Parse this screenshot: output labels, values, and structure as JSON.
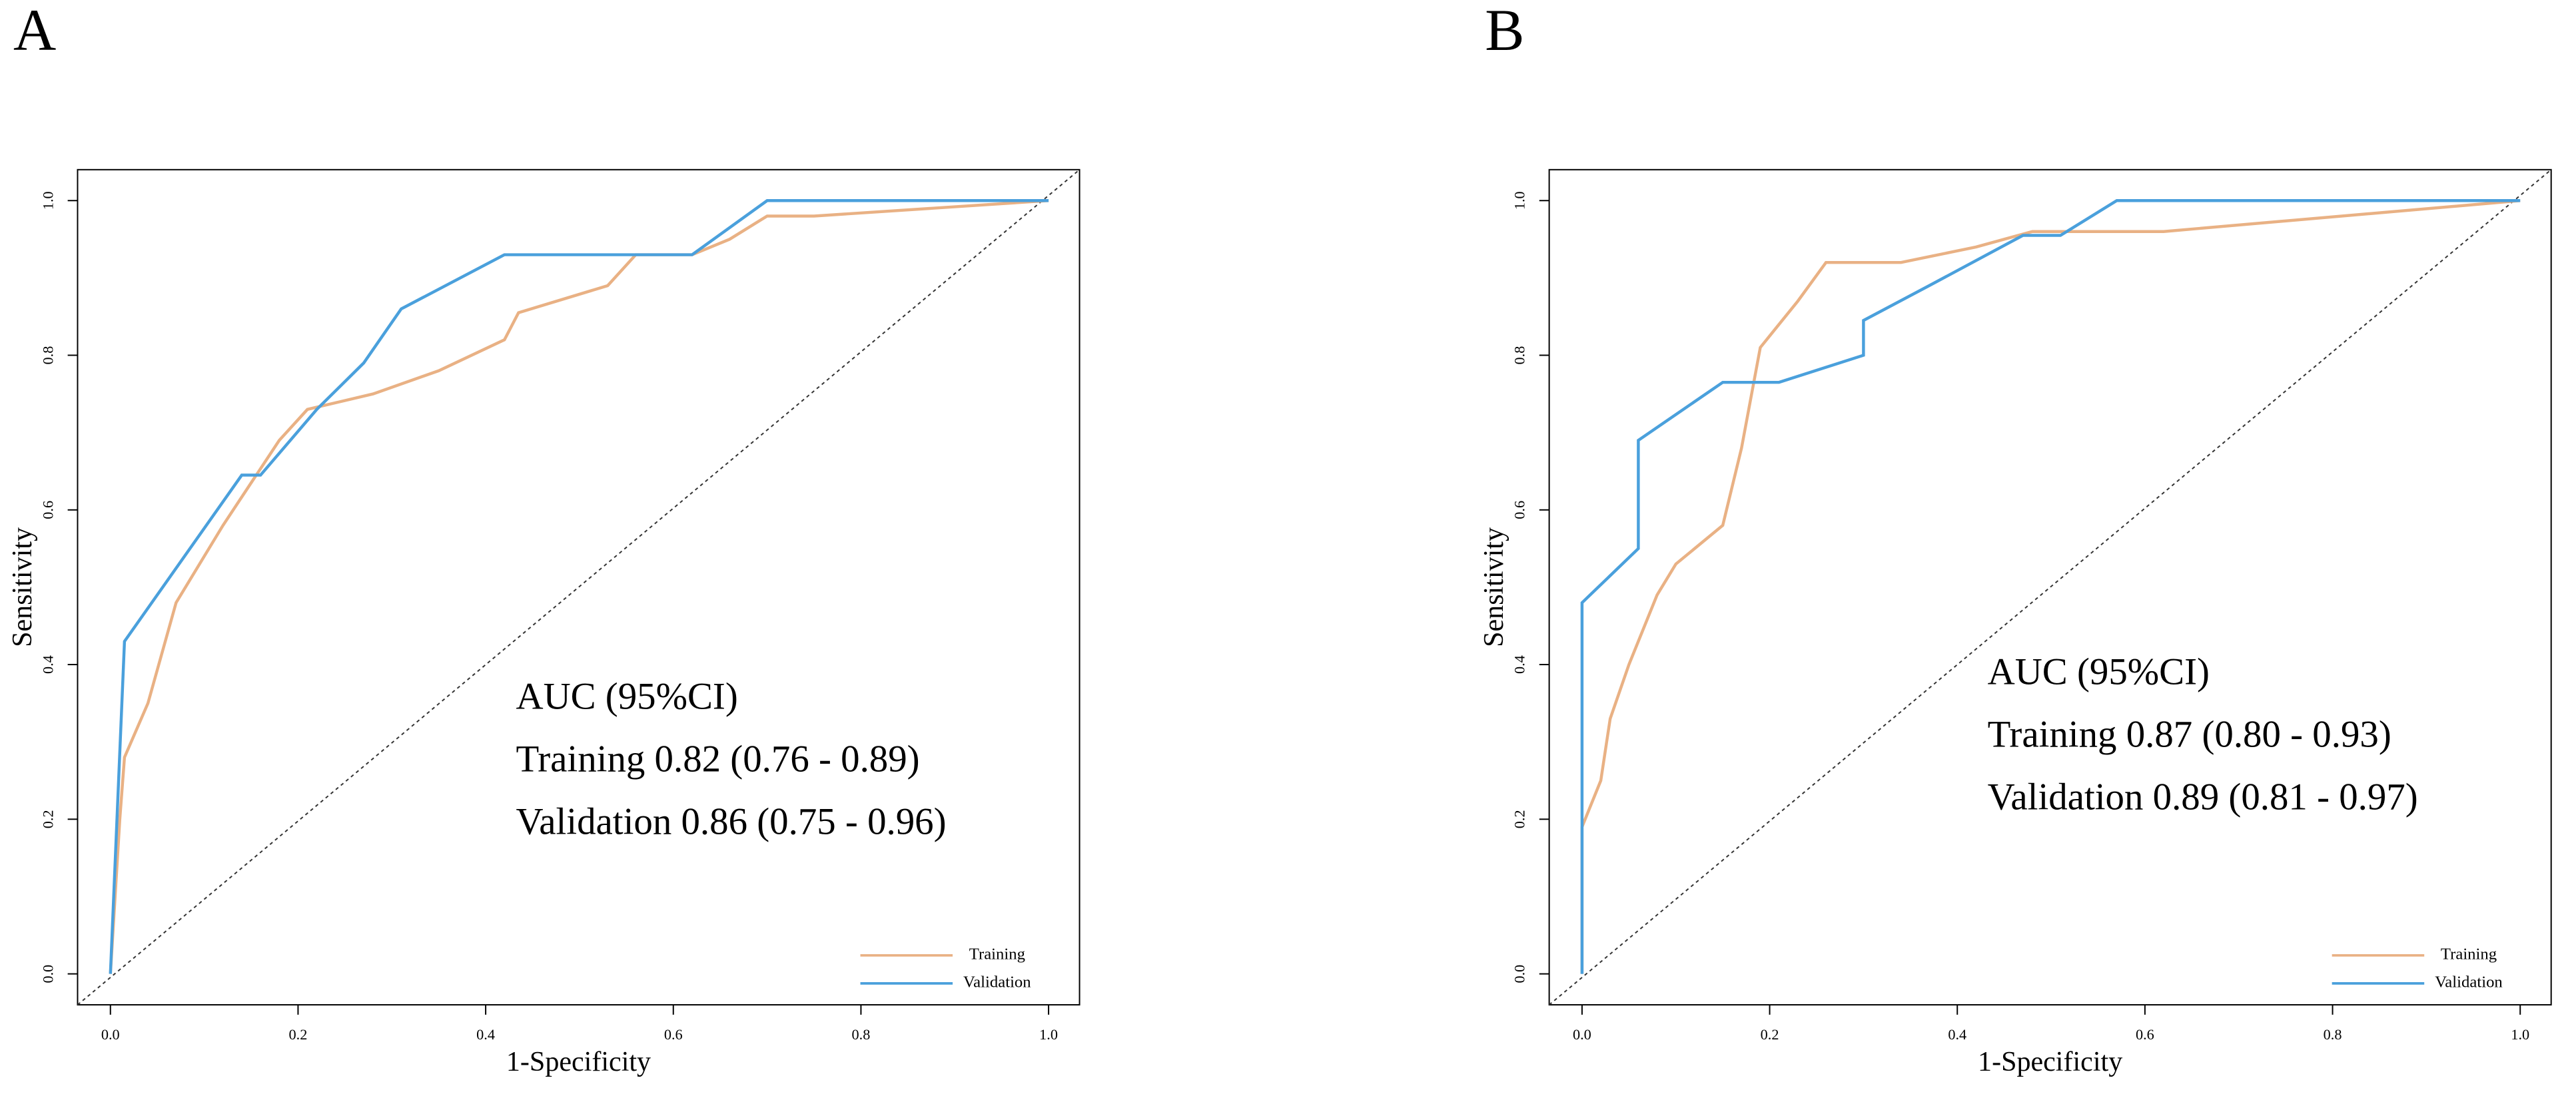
{
  "chart_data": [
    {
      "type": "line",
      "panel_label": "A",
      "xlabel": "1-Specificity",
      "ylabel": "Sensitivity",
      "annotations": [
        "AUC (95%CI)",
        "Training 0.82 (0.76 - 0.89)",
        "Validation 0.86 (0.75 - 0.96)"
      ],
      "xlim": [
        -0.035,
        1.033
      ],
      "ylim": [
        -0.04,
        1.04
      ],
      "xticks": [
        {
          "value": 0,
          "label": "0.0"
        },
        0.2,
        0.4,
        0.6,
        0.8,
        {
          "value": 1,
          "label": "1.0"
        }
      ],
      "yticks": [
        {
          "value": 0,
          "label": "0.0"
        },
        0.2,
        0.4,
        0.6,
        0.8,
        {
          "value": 1,
          "label": "1.0"
        }
      ],
      "legend": "bottom-right",
      "series": [
        {
          "name": "Training",
          "color": "#e9b184",
          "x": [
            0,
            0.01,
            0.015,
            0.04,
            0.07,
            0.12,
            0.18,
            0.21,
            0.28,
            0.35,
            0.42,
            0.435,
            0.53,
            0.56,
            0.62,
            0.66,
            0.7,
            0.75,
            1
          ],
          "values": [
            0,
            0.2,
            0.28,
            0.35,
            0.48,
            0.58,
            0.69,
            0.73,
            0.75,
            0.78,
            0.82,
            0.855,
            0.89,
            0.93,
            0.93,
            0.95,
            0.98,
            0.98,
            1
          ]
        },
        {
          "name": "Validation",
          "color": "#4aa0dc",
          "x": [
            0,
            0.015,
            0.14,
            0.16,
            0.22,
            0.27,
            0.31,
            0.42,
            0.62,
            0.7,
            1
          ],
          "values": [
            0,
            0.43,
            0.645,
            0.645,
            0.73,
            0.79,
            0.86,
            0.93,
            0.93,
            1,
            1
          ]
        }
      ]
    },
    {
      "type": "line",
      "panel_label": "B",
      "xlabel": "1-Specificity",
      "ylabel": "Sensitivity",
      "annotations": [
        "AUC (95%CI)",
        "Training 0.87 (0.80 - 0.93)",
        "Validation 0.89 (0.81 - 0.97)"
      ],
      "xlim": [
        -0.035,
        1.033
      ],
      "ylim": [
        -0.04,
        1.04
      ],
      "xticks": [
        {
          "value": 0,
          "label": "0.0"
        },
        0.2,
        0.4,
        0.6,
        0.8,
        {
          "value": 1,
          "label": "1.0"
        }
      ],
      "yticks": [
        {
          "value": 0,
          "label": "0.0"
        },
        0.2,
        0.4,
        0.6,
        0.8,
        {
          "value": 1,
          "label": "1.0"
        }
      ],
      "legend": "bottom-right",
      "series": [
        {
          "name": "Training",
          "color": "#e9b184",
          "x": [
            0,
            0,
            0.02,
            0.03,
            0.05,
            0.08,
            0.1,
            0.15,
            0.17,
            0.19,
            0.23,
            0.26,
            0.34,
            0.42,
            0.48,
            0.62,
            1
          ],
          "values": [
            0,
            0.19,
            0.25,
            0.33,
            0.4,
            0.49,
            0.53,
            0.58,
            0.68,
            0.81,
            0.87,
            0.92,
            0.92,
            0.94,
            0.96,
            0.96,
            1
          ]
        },
        {
          "name": "Validation",
          "color": "#4aa0dc",
          "x": [
            0,
            0,
            0.06,
            0.06,
            0.15,
            0.21,
            0.3,
            0.3,
            0.37,
            0.47,
            0.51,
            0.57,
            1
          ],
          "values": [
            0,
            0.48,
            0.55,
            0.69,
            0.765,
            0.765,
            0.8,
            0.845,
            0.89,
            0.955,
            0.955,
            1,
            1
          ]
        }
      ]
    }
  ]
}
